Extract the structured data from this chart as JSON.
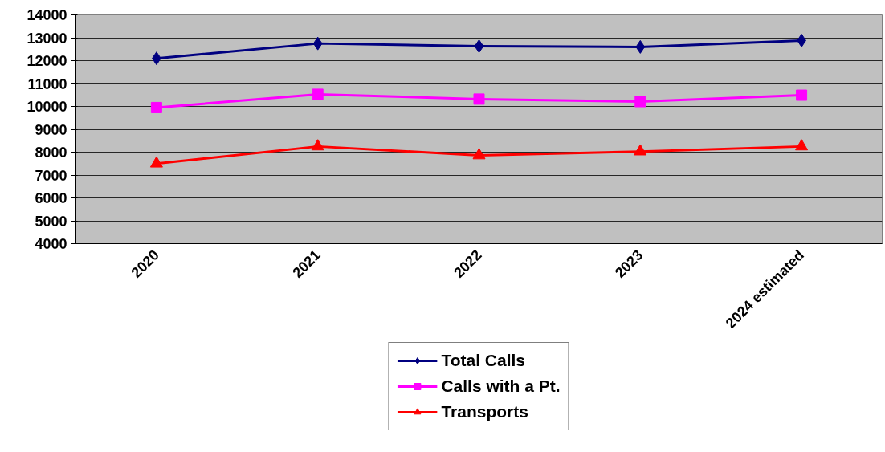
{
  "chart_data": {
    "type": "line",
    "categories": [
      "2020",
      "2021",
      "2022",
      "2023",
      "2024 estimated"
    ],
    "series": [
      {
        "name": "Total Calls",
        "color": "#000080",
        "marker": "diamond",
        "values": [
          12100,
          12750,
          12630,
          12600,
          12880
        ]
      },
      {
        "name": "Calls with a Pt.",
        "color": "#ff00ff",
        "marker": "square",
        "values": [
          9950,
          10530,
          10320,
          10210,
          10490
        ]
      },
      {
        "name": "Transports",
        "color": "#ff0000",
        "marker": "triangle",
        "values": [
          7500,
          8250,
          7860,
          8030,
          8250
        ]
      }
    ],
    "ylim": [
      4000,
      14000
    ],
    "yticks": [
      4000,
      5000,
      6000,
      7000,
      8000,
      9000,
      10000,
      11000,
      12000,
      13000,
      14000
    ],
    "grid": "y",
    "legend": "bottom",
    "line_style": "solid"
  }
}
